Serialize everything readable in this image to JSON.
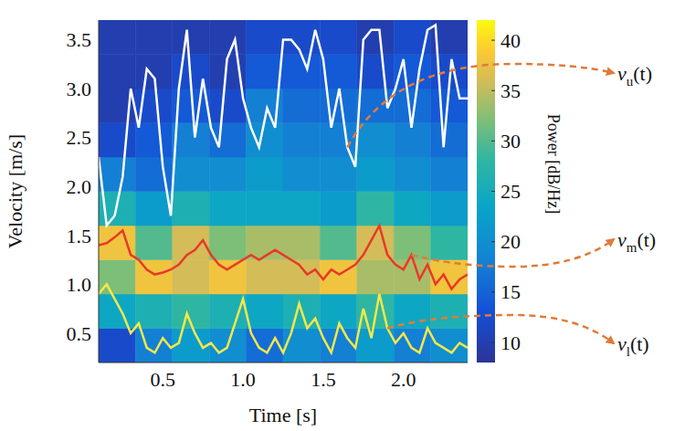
{
  "chart_data": {
    "type": "heatmap",
    "xlabel": "Time [s]",
    "ylabel": "Velocity [m/s]",
    "xlim": [
      0.1,
      2.4
    ],
    "ylim": [
      0.2,
      3.7
    ],
    "xticks": [
      0.5,
      {
        "value": 1,
        "label": "1.0"
      },
      1.5,
      {
        "value": 2,
        "label": "2.0"
      }
    ],
    "yticks": [
      0.5,
      {
        "value": 1,
        "label": "1.0"
      },
      1.5,
      {
        "value": 2,
        "label": "2.0"
      },
      2.5,
      {
        "value": 3,
        "label": "3.0"
      },
      3.5
    ],
    "heatmap": {
      "x_edges": [
        0.1,
        0.33,
        0.56,
        0.79,
        1.02,
        1.25,
        1.48,
        1.71,
        1.94,
        2.17,
        2.4
      ],
      "y_edges": [
        0.2,
        0.55,
        0.9,
        1.25,
        1.6,
        1.95,
        2.3,
        2.65,
        3.0,
        3.35,
        3.7
      ],
      "values": [
        [
          12,
          18,
          22,
          20,
          16,
          20,
          18,
          22,
          18,
          20
        ],
        [
          24,
          26,
          28,
          26,
          24,
          26,
          24,
          28,
          24,
          26
        ],
        [
          32,
          38,
          36,
          38,
          36,
          36,
          38,
          34,
          34,
          38
        ],
        [
          38,
          30,
          36,
          32,
          34,
          34,
          30,
          36,
          32,
          28
        ],
        [
          26,
          22,
          26,
          24,
          24,
          24,
          22,
          28,
          24,
          22
        ],
        [
          18,
          16,
          20,
          20,
          22,
          20,
          20,
          22,
          20,
          18
        ],
        [
          12,
          14,
          18,
          16,
          20,
          18,
          18,
          20,
          18,
          16
        ],
        [
          10,
          12,
          14,
          12,
          18,
          16,
          16,
          16,
          16,
          14
        ],
        [
          10,
          10,
          12,
          10,
          14,
          14,
          14,
          12,
          14,
          12
        ],
        [
          10,
          10,
          10,
          10,
          12,
          12,
          12,
          10,
          12,
          10
        ]
      ]
    },
    "colorbar": {
      "label": "Power [dB/Hz]",
      "lim": [
        8,
        42
      ],
      "ticks": [
        10,
        15,
        20,
        25,
        30,
        35,
        40
      ]
    },
    "x": [
      0.1,
      0.15,
      0.2,
      0.25,
      0.3,
      0.35,
      0.4,
      0.45,
      0.5,
      0.55,
      0.6,
      0.65,
      0.7,
      0.75,
      0.8,
      0.85,
      0.9,
      0.95,
      1.0,
      1.05,
      1.1,
      1.15,
      1.2,
      1.25,
      1.3,
      1.35,
      1.4,
      1.45,
      1.5,
      1.55,
      1.6,
      1.65,
      1.7,
      1.75,
      1.8,
      1.85,
      1.9,
      1.95,
      2.0,
      2.05,
      2.1,
      2.15,
      2.2,
      2.25,
      2.3,
      2.35,
      2.4
    ],
    "series": [
      {
        "name": "vu(t)",
        "type": "line",
        "color": "#ffffff",
        "values": [
          2.3,
          1.6,
          1.7,
          2.1,
          3.0,
          2.6,
          3.2,
          3.1,
          2.2,
          1.7,
          3.0,
          3.6,
          2.5,
          3.1,
          2.6,
          2.4,
          3.3,
          3.5,
          2.9,
          2.6,
          2.4,
          2.8,
          2.6,
          3.5,
          3.5,
          3.4,
          3.2,
          3.6,
          3.3,
          2.6,
          3.0,
          2.4,
          2.2,
          3.5,
          3.6,
          3.6,
          2.8,
          3.0,
          3.3,
          2.6,
          3.2,
          3.6,
          3.65,
          2.4,
          3.3,
          2.9,
          2.9
        ]
      },
      {
        "name": "vm(t)",
        "type": "line",
        "color": "#e8392a",
        "values": [
          1.4,
          1.42,
          1.48,
          1.55,
          1.3,
          1.25,
          1.15,
          1.1,
          1.12,
          1.15,
          1.2,
          1.3,
          1.35,
          1.45,
          1.3,
          1.2,
          1.15,
          1.2,
          1.25,
          1.3,
          1.25,
          1.3,
          1.35,
          1.3,
          1.25,
          1.2,
          1.1,
          1.15,
          1.05,
          1.15,
          1.1,
          1.15,
          1.2,
          1.3,
          1.45,
          1.6,
          1.3,
          1.2,
          1.15,
          1.3,
          1.05,
          1.2,
          1.0,
          1.1,
          0.95,
          1.05,
          1.1
        ]
      },
      {
        "name": "vl(t)",
        "type": "line",
        "color": "#f5e74a",
        "values": [
          0.9,
          1.0,
          0.85,
          0.7,
          0.5,
          0.6,
          0.35,
          0.3,
          0.45,
          0.35,
          0.4,
          0.7,
          0.5,
          0.35,
          0.4,
          0.3,
          0.35,
          0.6,
          0.85,
          0.5,
          0.35,
          0.3,
          0.45,
          0.3,
          0.5,
          0.8,
          0.55,
          0.65,
          0.45,
          0.3,
          0.6,
          0.45,
          0.35,
          0.75,
          0.45,
          0.9,
          0.55,
          0.4,
          0.5,
          0.35,
          0.3,
          0.55,
          0.4,
          0.35,
          0.3,
          0.4,
          0.35
        ]
      }
    ]
  }
}
